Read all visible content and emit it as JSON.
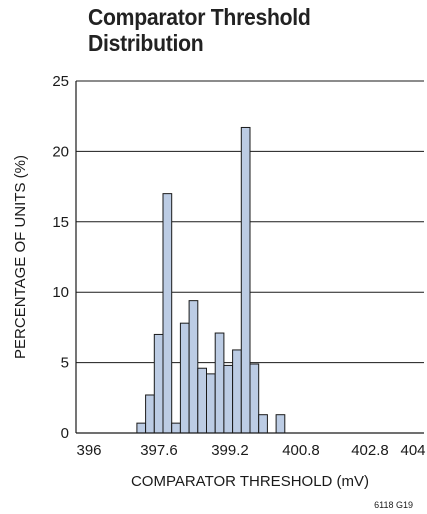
{
  "chart_data": {
    "type": "bar",
    "title": "Comparator Threshold\nDistribution",
    "title_lines": [
      "Comparator Threshold",
      "Distribution"
    ],
    "xlabel": "COMPARATOR THRESHOLD (mV)",
    "ylabel": "PERCENTAGE OF UNITS (%)",
    "xlim": [
      396,
      404
    ],
    "ylim": [
      0,
      25
    ],
    "x_ticks": [
      "396",
      "397.6",
      "399.2",
      "400.8",
      "402.8",
      "404"
    ],
    "y_ticks": [
      "0",
      "5",
      "10",
      "15",
      "20",
      "25"
    ],
    "grid": "horizontal",
    "figure_id": "6118 G19",
    "bar_color": "#bccce4",
    "bar_edge_color": "#1a1a1a",
    "bins": [
      {
        "x": 397.5,
        "value": 0.7
      },
      {
        "x": 397.7,
        "value": 2.7
      },
      {
        "x": 397.9,
        "value": 7.0
      },
      {
        "x": 398.1,
        "value": 17.0
      },
      {
        "x": 398.3,
        "value": 0.7
      },
      {
        "x": 398.5,
        "value": 7.8
      },
      {
        "x": 398.7,
        "value": 9.4
      },
      {
        "x": 398.9,
        "value": 4.6
      },
      {
        "x": 399.1,
        "value": 4.2
      },
      {
        "x": 399.3,
        "value": 7.1
      },
      {
        "x": 399.5,
        "value": 4.8
      },
      {
        "x": 399.7,
        "value": 5.9
      },
      {
        "x": 399.9,
        "value": 21.7
      },
      {
        "x": 400.1,
        "value": 4.9
      },
      {
        "x": 400.3,
        "value": 1.3
      },
      {
        "x": 400.7,
        "value": 1.3
      }
    ]
  }
}
